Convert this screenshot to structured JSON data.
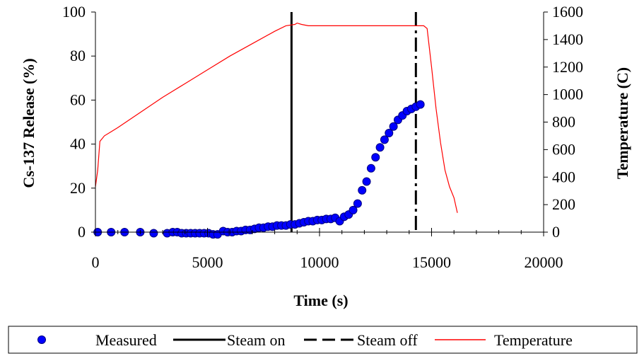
{
  "chart_data": {
    "type": "scatter",
    "xlabel": "Time (s)",
    "ylabel": "Cs-137 Release (%)",
    "y2label": "Temperature (C)",
    "xlim": [
      0,
      20000
    ],
    "ylim": [
      0,
      100
    ],
    "y2lim": [
      0,
      1600
    ],
    "x_ticks": [
      0,
      5000,
      10000,
      15000,
      20000
    ],
    "y_ticks": [
      0,
      20,
      40,
      60,
      80,
      100
    ],
    "y2_ticks": [
      0,
      200,
      400,
      600,
      800,
      1000,
      1200,
      1400,
      1600
    ],
    "grid": false,
    "legend_position": "bottom",
    "series": [
      {
        "name": "Measured",
        "kind": "scatter",
        "axis": "left",
        "color": "#0000ff",
        "x": [
          100,
          700,
          1300,
          2000,
          2600,
          3200,
          3450,
          3650,
          3850,
          4050,
          4250,
          4450,
          4650,
          4850,
          5050,
          5250,
          5450,
          5700,
          5900,
          6100,
          6300,
          6500,
          6700,
          6900,
          7100,
          7300,
          7500,
          7700,
          7900,
          8100,
          8300,
          8500,
          8700,
          8900,
          9100,
          9300,
          9500,
          9700,
          9900,
          10100,
          10300,
          10500,
          10700,
          10900,
          11100,
          11300,
          11500,
          11700,
          11900,
          12100,
          12300,
          12500,
          12700,
          12900,
          13100,
          13300,
          13500,
          13700,
          13900,
          14100,
          14300,
          14500
        ],
        "values": [
          0,
          0,
          0,
          0,
          -0.5,
          -0.5,
          0,
          0,
          -0.5,
          -0.5,
          -0.5,
          -0.5,
          -0.5,
          -0.5,
          -0.5,
          -1,
          -1,
          0.5,
          0,
          0,
          0.5,
          0.5,
          1,
          1,
          1.5,
          2,
          2,
          2.5,
          2.5,
          3,
          3,
          3,
          3.5,
          3.5,
          4,
          4.5,
          5,
          5,
          5.5,
          5.5,
          6,
          6,
          6.5,
          5,
          7,
          8,
          10,
          13,
          19,
          23,
          29,
          34,
          38.5,
          42,
          45,
          48,
          51,
          53,
          55,
          56,
          57,
          58
        ]
      },
      {
        "name": "Steam on",
        "kind": "vline",
        "color": "#000000",
        "x": 8750
      },
      {
        "name": "Steam off",
        "kind": "vline-dashdot",
        "color": "#000000",
        "x": 14300
      },
      {
        "name": "Temperature",
        "kind": "line",
        "axis": "right",
        "color": "#ff0000",
        "x": [
          0,
          100,
          200,
          400,
          700,
          1000,
          2000,
          3000,
          4000,
          5000,
          6000,
          7000,
          8000,
          8500,
          8900,
          9000,
          9200,
          9500,
          10000,
          11000,
          12000,
          13000,
          14000,
          14500,
          14650,
          14800,
          15000,
          15200,
          15400,
          15600,
          15800,
          16000,
          16150
        ],
        "values": [
          330,
          450,
          660,
          700,
          730,
          760,
          870,
          980,
          1080,
          1180,
          1280,
          1370,
          1460,
          1500,
          1510,
          1520,
          1510,
          1500,
          1500,
          1500,
          1500,
          1500,
          1500,
          1500,
          1500,
          1480,
          1200,
          900,
          650,
          450,
          330,
          250,
          140
        ]
      }
    ]
  }
}
